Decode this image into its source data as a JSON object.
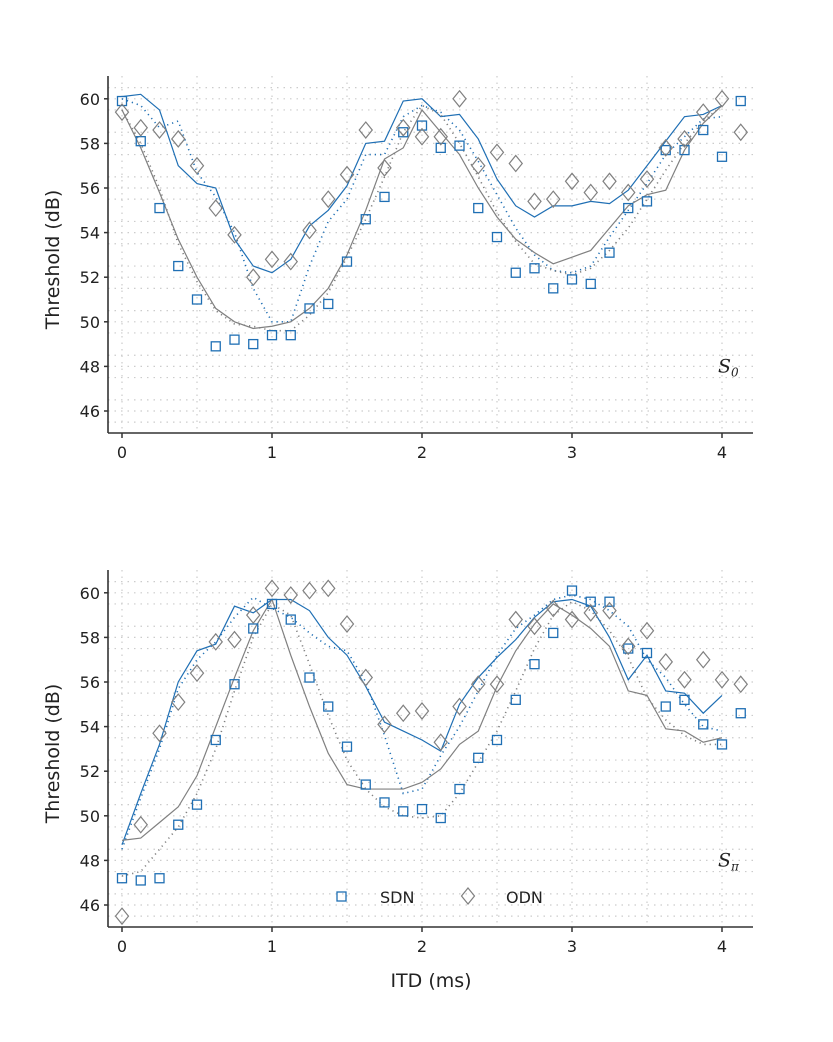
{
  "chart_data": [
    {
      "type": "line+scatter",
      "panel_label": "S",
      "panel_subscript": "0",
      "xlabel": "",
      "ylabel": "Threshold (dB)",
      "xlim": [
        -0.1,
        4.2
      ],
      "ylim": [
        45,
        61
      ],
      "xticks": [
        0,
        1,
        2,
        3,
        4
      ],
      "yticks": [
        46,
        48,
        50,
        52,
        54,
        56,
        58,
        60
      ],
      "grid": true,
      "scatter": [
        {
          "name": "SDN",
          "marker": "square",
          "color": "#1f6fb4",
          "values": [
            59.9,
            58.1,
            55.1,
            52.5,
            51.0,
            48.9,
            49.2,
            49.0,
            49.4,
            49.4,
            50.6,
            50.8,
            52.7,
            54.6,
            55.6,
            58.5,
            58.8,
            57.8,
            57.9,
            55.1,
            53.8,
            52.2,
            52.4,
            51.5,
            51.9,
            51.7,
            53.1,
            55.1,
            55.4,
            57.7,
            57.7,
            58.6,
            57.4,
            59.9
          ]
        },
        {
          "name": "ODN",
          "marker": "diamond",
          "color": "#808080",
          "values": [
            59.4,
            58.7,
            58.6,
            58.2,
            57.0,
            55.1,
            53.9,
            52.0,
            52.8,
            52.7,
            54.1,
            55.5,
            56.6,
            58.6,
            56.9,
            58.7,
            58.3,
            58.3,
            60.0,
            57.0,
            57.6,
            57.1,
            55.4,
            55.5,
            56.3,
            55.8,
            56.3,
            55.8,
            56.4,
            57.8,
            58.2,
            59.4,
            60.0,
            58.5
          ]
        }
      ],
      "lines": [
        {
          "color": "#1f6fb4",
          "style": "solid",
          "values": [
            60.1,
            60.2,
            59.5,
            57.0,
            56.2,
            56.0,
            53.7,
            52.5,
            52.2,
            52.8,
            54.3,
            55.0,
            56.1,
            58.0,
            58.1,
            59.9,
            60.0,
            59.2,
            59.3,
            58.2,
            56.4,
            55.2,
            54.7,
            55.2,
            55.2,
            55.4,
            55.3,
            55.9,
            57.0,
            58.1,
            59.2,
            59.3,
            59.7
          ]
        },
        {
          "color": "#1f6fb4",
          "style": "dotted",
          "values": [
            60.0,
            59.7,
            58.7,
            59.0,
            56.7,
            55.6,
            54.0,
            51.5,
            50.0,
            50.0,
            52.5,
            54.5,
            55.5,
            57.5,
            57.5,
            59.2,
            59.7,
            59.4,
            58.6,
            57.2,
            55.7,
            54.2,
            53.0,
            52.3,
            52.2,
            52.5,
            53.8,
            55.0,
            56.2,
            57.5,
            58.3,
            59.1,
            59.2
          ]
        },
        {
          "color": "#808080",
          "style": "solid",
          "values": [
            59.5,
            57.8,
            55.8,
            53.7,
            52.0,
            50.6,
            50.0,
            49.7,
            49.8,
            50.0,
            50.6,
            51.5,
            53.0,
            55.0,
            57.3,
            57.8,
            59.5,
            58.5,
            57.5,
            56.0,
            54.7,
            53.7,
            53.1,
            52.6,
            52.9,
            53.2,
            54.2,
            55.2,
            55.7,
            55.9,
            57.7,
            58.9,
            59.7
          ]
        },
        {
          "color": "#808080",
          "style": "dotted",
          "values": [
            59.5,
            58.0,
            56.0,
            53.5,
            51.8,
            50.5,
            49.9,
            49.8,
            49.6,
            49.6,
            50.3,
            51.3,
            52.9,
            54.6,
            56.5,
            58.5,
            59.7,
            59.3,
            58.0,
            56.5,
            54.9,
            53.6,
            52.6,
            52.3,
            52.1,
            52.4,
            53.2,
            54.2,
            55.5,
            56.8,
            58.0,
            59.0,
            59.7
          ]
        }
      ]
    },
    {
      "type": "line+scatter",
      "panel_label": "S",
      "panel_subscript": "π",
      "xlabel": "ITD (ms)",
      "ylabel": "Threshold (dB)",
      "xlim": [
        -0.1,
        4.2
      ],
      "ylim": [
        45,
        61
      ],
      "xticks": [
        0,
        1,
        2,
        3,
        4
      ],
      "yticks": [
        46,
        48,
        50,
        52,
        54,
        56,
        58,
        60
      ],
      "grid": true,
      "legend": {
        "placement": "bottom-center",
        "entries": [
          "SDN",
          "ODN"
        ]
      },
      "scatter": [
        {
          "name": "SDN",
          "marker": "square",
          "color": "#1f6fb4",
          "values": [
            47.2,
            47.1,
            47.2,
            49.6,
            50.5,
            53.4,
            55.9,
            58.4,
            59.5,
            58.8,
            56.2,
            54.9,
            53.1,
            51.4,
            50.6,
            50.2,
            50.3,
            49.9,
            51.2,
            52.6,
            53.4,
            55.2,
            56.8,
            58.2,
            60.1,
            59.6,
            59.6,
            57.5,
            57.3,
            54.9,
            55.2,
            54.1,
            53.2,
            54.6
          ]
        },
        {
          "name": "ODN",
          "marker": "diamond",
          "color": "#808080",
          "values": [
            45.5,
            49.6,
            53.7,
            55.1,
            56.4,
            57.8,
            57.9,
            59.0,
            60.2,
            59.9,
            60.1,
            60.2,
            58.6,
            56.2,
            54.1,
            54.6,
            54.7,
            53.3,
            54.9,
            55.9,
            55.9,
            58.8,
            58.5,
            59.3,
            58.8,
            59.1,
            59.2,
            57.6,
            58.3,
            56.9,
            56.1,
            57.0,
            56.1,
            55.9
          ]
        }
      ],
      "lines": [
        {
          "color": "#1f6fb4",
          "style": "solid",
          "values": [
            48.7,
            51.0,
            53.2,
            56.0,
            57.4,
            57.7,
            59.4,
            59.1,
            59.7,
            59.7,
            59.2,
            58.0,
            57.2,
            55.8,
            54.2,
            53.8,
            53.4,
            52.9,
            55.0,
            56.2,
            57.1,
            57.9,
            58.9,
            59.6,
            59.7,
            59.4,
            58.0,
            56.1,
            57.2,
            55.6,
            55.5,
            54.6,
            55.4
          ]
        },
        {
          "color": "#1f6fb4",
          "style": "dotted",
          "values": [
            48.5,
            50.8,
            53.0,
            55.7,
            57.0,
            57.8,
            58.9,
            59.8,
            59.3,
            58.9,
            58.2,
            57.6,
            57.4,
            56.0,
            53.6,
            51.0,
            51.2,
            52.7,
            54.0,
            55.6,
            57.2,
            58.4,
            59.0,
            59.7,
            59.9,
            59.7,
            59.2,
            58.5,
            57.0,
            56.2,
            55.0,
            54.0,
            53.8
          ]
        },
        {
          "color": "#808080",
          "style": "solid",
          "values": [
            48.9,
            49.0,
            49.7,
            50.4,
            51.8,
            54.0,
            56.2,
            58.3,
            59.7,
            57.2,
            54.9,
            52.8,
            51.4,
            51.2,
            51.2,
            51.2,
            51.5,
            52.1,
            53.2,
            53.8,
            55.8,
            57.4,
            58.6,
            59.5,
            59.0,
            58.4,
            57.6,
            55.6,
            55.4,
            53.9,
            53.8,
            53.3,
            53.5
          ]
        },
        {
          "color": "#808080",
          "style": "dotted",
          "values": [
            47.3,
            47.5,
            48.5,
            49.5,
            51.0,
            53.0,
            55.6,
            58.0,
            59.5,
            59.0,
            56.8,
            54.5,
            52.5,
            51.2,
            50.4,
            50.0,
            49.9,
            50.0,
            51.0,
            52.4,
            53.8,
            55.6,
            57.5,
            59.0,
            59.6,
            59.2,
            58.3,
            57.1,
            55.3,
            54.3,
            53.6,
            53.2,
            53.2
          ]
        }
      ]
    }
  ],
  "x_step": 0.125
}
